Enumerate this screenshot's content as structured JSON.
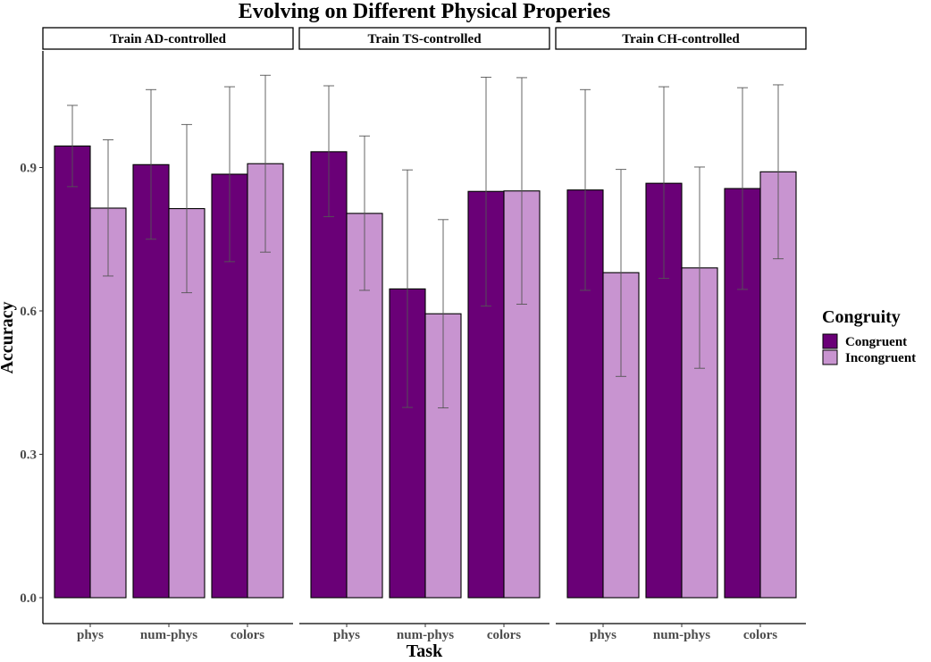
{
  "chart_data": {
    "type": "bar",
    "title": "Evolving on Different Physical Properies",
    "xlabel": "Task",
    "ylabel": "Accuracy",
    "ylim": [
      0,
      1.14
    ],
    "yticks": [
      0.0,
      0.3,
      0.6,
      0.9
    ],
    "ytick_labels": [
      "0.0",
      "0.3",
      "0.6",
      "0.9"
    ],
    "categories": [
      "phys",
      "num-phys",
      "colors"
    ],
    "legend": {
      "title": "Congruity",
      "placement": "right",
      "entries": [
        {
          "label": "Congruent",
          "color": "#6a0077"
        },
        {
          "label": "Incongruent",
          "color": "#c894d0"
        }
      ]
    },
    "panels": [
      {
        "strip": "Train AD-controlled",
        "series": [
          {
            "name": "Congruent",
            "values": [
              0.945,
              0.906,
              0.886
            ],
            "err_low": [
              0.86,
              0.75,
              0.703
            ],
            "err_high": [
              1.03,
              1.063,
              1.069
            ]
          },
          {
            "name": "Incongruent",
            "values": [
              0.815,
              0.814,
              0.908
            ],
            "err_low": [
              0.673,
              0.638,
              0.723
            ],
            "err_high": [
              0.958,
              0.99,
              1.093
            ]
          }
        ]
      },
      {
        "strip": "Train TS-controlled",
        "series": [
          {
            "name": "Congruent",
            "values": [
              0.933,
              0.646,
              0.85
            ],
            "err_low": [
              0.797,
              0.398,
              0.61
            ],
            "err_high": [
              1.071,
              0.895,
              1.089
            ]
          },
          {
            "name": "Incongruent",
            "values": [
              0.804,
              0.594,
              0.851
            ],
            "err_low": [
              0.643,
              0.397,
              0.614
            ],
            "err_high": [
              0.966,
              0.791,
              1.088
            ]
          }
        ]
      },
      {
        "strip": "Train CH-controlled",
        "series": [
          {
            "name": "Congruent",
            "values": [
              0.853,
              0.867,
              0.856
            ],
            "err_low": [
              0.643,
              0.668,
              0.645
            ],
            "err_high": [
              1.063,
              1.069,
              1.067
            ]
          },
          {
            "name": "Incongruent",
            "values": [
              0.68,
              0.69,
              0.891
            ],
            "err_low": [
              0.463,
              0.48,
              0.709
            ],
            "err_high": [
              0.896,
              0.901,
              1.073
            ]
          }
        ]
      }
    ]
  }
}
